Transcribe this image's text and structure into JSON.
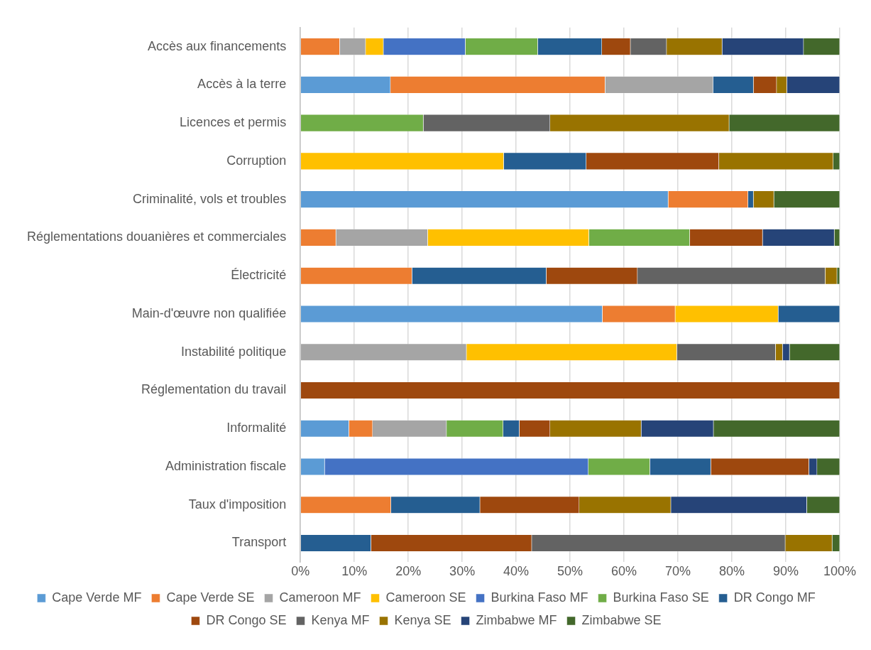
{
  "chart_data": {
    "type": "bar",
    "orientation": "horizontal",
    "stacked": true,
    "grid": "x",
    "legend": "bottom",
    "categories": [
      "Accès aux financements",
      "Accès à la terre",
      "Licences et permis",
      "Corruption",
      "Criminalité, vols et troubles",
      "Réglementations douanières et commerciales",
      "Électricité",
      "Main-d'œuvre non qualifiée",
      "Instabilité politique",
      "Réglementation du travail",
      "Informalité",
      "Administration fiscale",
      "Taux d'imposition",
      "Transport"
    ],
    "xlim": [
      0,
      100
    ],
    "xticks": [
      {
        "value": 0,
        "label": "0%"
      },
      {
        "value": 10,
        "label": "10%"
      },
      {
        "value": 20,
        "label": "20%"
      },
      {
        "value": 30,
        "label": "30%"
      },
      {
        "value": 40,
        "label": "40%"
      },
      {
        "value": 50,
        "label": "50%"
      },
      {
        "value": 60,
        "label": "60%"
      },
      {
        "value": 70,
        "label": "70%"
      },
      {
        "value": 80,
        "label": "80%"
      },
      {
        "value": 90,
        "label": "90%"
      },
      {
        "value": 100,
        "label": "100%"
      }
    ],
    "series": [
      {
        "name": "Cape Verde MF",
        "color": "#5b9bd5",
        "values": [
          null,
          16.7,
          null,
          null,
          68.2,
          null,
          null,
          56,
          null,
          null,
          9,
          4.5,
          null,
          null
        ]
      },
      {
        "name": "Cape Verde SE",
        "color": "#ed7d31",
        "values": [
          7.3,
          39.8,
          null,
          null,
          14.8,
          6.6,
          20.7,
          13.5,
          null,
          null,
          4.4,
          null,
          16.8,
          null
        ]
      },
      {
        "name": "Cameroon MF",
        "color": "#a5a5a5",
        "values": [
          4.8,
          20,
          null,
          null,
          null,
          17,
          null,
          null,
          30.8,
          null,
          13.7,
          null,
          null,
          null
        ]
      },
      {
        "name": "Cameroon SE",
        "color": "#ffc000",
        "values": [
          3.3,
          null,
          null,
          37.7,
          null,
          29.9,
          null,
          19.1,
          39,
          null,
          null,
          null,
          null,
          null
        ]
      },
      {
        "name": "Burkina Faso MF",
        "color": "#4472c4",
        "values": [
          15.2,
          null,
          null,
          null,
          null,
          null,
          null,
          null,
          null,
          null,
          null,
          48.9,
          null,
          null
        ]
      },
      {
        "name": "Burkina Faso SE",
        "color": "#70ad47",
        "values": [
          13.4,
          null,
          22.8,
          null,
          null,
          18.7,
          null,
          null,
          null,
          null,
          10.5,
          11.4,
          null,
          null
        ]
      },
      {
        "name": "DR Congo MF",
        "color": "#255e91",
        "values": [
          11.9,
          7.5,
          null,
          15.3,
          1,
          null,
          24.9,
          11.4,
          null,
          null,
          3,
          11.3,
          16.5,
          13.1
        ]
      },
      {
        "name": "DR Congo SE",
        "color": "#9e480e",
        "values": [
          5.3,
          4.3,
          null,
          24.6,
          null,
          13.5,
          16.9,
          null,
          null,
          100,
          5.7,
          18.2,
          18.4,
          29.8
        ]
      },
      {
        "name": "Kenya MF",
        "color": "#636363",
        "values": [
          6.7,
          null,
          23.5,
          null,
          null,
          null,
          34.8,
          null,
          18.3,
          null,
          null,
          null,
          null,
          47
        ]
      },
      {
        "name": "Kenya SE",
        "color": "#997300",
        "values": [
          10.3,
          1.9,
          33.2,
          21.2,
          3.8,
          null,
          2.2,
          null,
          1.3,
          null,
          16.9,
          null,
          17,
          8.7
        ]
      },
      {
        "name": "Zimbabwe MF",
        "color": "#264478",
        "values": [
          15.1,
          9.8,
          null,
          null,
          null,
          13.3,
          null,
          null,
          1.3,
          null,
          13.4,
          1.5,
          25.2,
          null
        ]
      },
      {
        "name": "Zimbabwe SE",
        "color": "#43682b",
        "values": [
          6.7,
          null,
          20.5,
          1.2,
          12.2,
          1,
          0.5,
          null,
          9.3,
          null,
          23.4,
          4.2,
          6.1,
          1.4
        ]
      }
    ]
  }
}
